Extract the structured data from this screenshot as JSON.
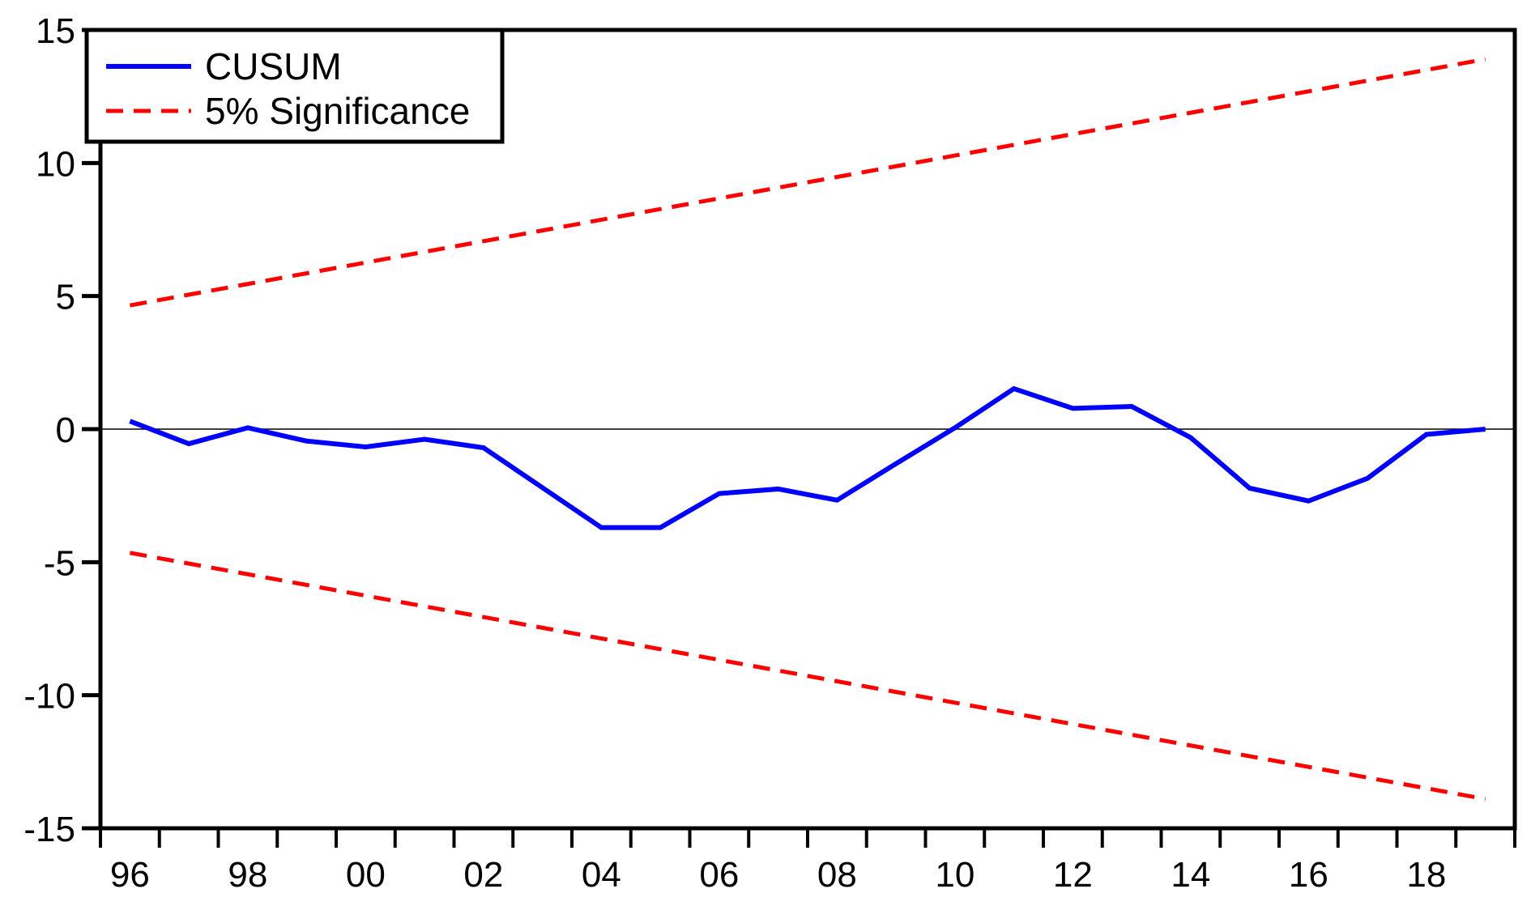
{
  "chart_data": {
    "type": "line",
    "title": "",
    "xlabel": "",
    "ylabel": "",
    "xlim": [
      1996,
      2020
    ],
    "ylim": [
      -15,
      15
    ],
    "grid": false,
    "zero_line": true,
    "frame_color": "#000000",
    "x_years": [
      1996,
      1997,
      1998,
      1999,
      2000,
      2001,
      2002,
      2003,
      2004,
      2005,
      2006,
      2007,
      2008,
      2009,
      2010,
      2011,
      2012,
      2013,
      2014,
      2015,
      2016,
      2017,
      2018,
      2019
    ],
    "series": [
      {
        "name": "CUSUM",
        "color": "#0000ff",
        "style": "solid",
        "values": [
          0.3,
          -0.55,
          0.05,
          -0.45,
          -0.67,
          -0.38,
          -0.7,
          -2.2,
          -3.7,
          -3.7,
          -2.42,
          -2.25,
          -2.67,
          -1.3,
          0.05,
          1.52,
          0.78,
          0.85,
          -0.32,
          -2.22,
          -2.7,
          -1.85,
          -0.2,
          0.0
        ]
      },
      {
        "name": "5% Significance (upper bound)",
        "color": "#ff0000",
        "style": "dashed",
        "x": [
          1996,
          2019
        ],
        "values": [
          4.65,
          13.9
        ]
      },
      {
        "name": "5% Significance (lower bound)",
        "color": "#ff0000",
        "style": "dashed",
        "x": [
          1996,
          2019
        ],
        "values": [
          -4.65,
          -13.9
        ]
      }
    ],
    "legend": {
      "position": "top-left",
      "items": [
        {
          "label": "CUSUM",
          "color": "#0000ff",
          "style": "solid"
        },
        {
          "label": "5% Significance",
          "color": "#ff0000",
          "style": "dashed"
        }
      ]
    },
    "yticks": {
      "values": [
        15,
        10,
        5,
        0,
        -5,
        -10,
        -15
      ],
      "labels": [
        "15",
        "10",
        "5",
        "0",
        "-5",
        "-10",
        "-15"
      ]
    },
    "xticks": {
      "minor_tick_years": [
        1996,
        1997,
        1998,
        1999,
        2000,
        2001,
        2002,
        2003,
        2004,
        2005,
        2006,
        2007,
        2008,
        2009,
        2010,
        2011,
        2012,
        2013,
        2014,
        2015,
        2016,
        2017,
        2018,
        2019,
        2020
      ],
      "labeled": [
        {
          "year": 1996,
          "label": "96"
        },
        {
          "year": 1998,
          "label": "98"
        },
        {
          "year": 2000,
          "label": "00"
        },
        {
          "year": 2002,
          "label": "02"
        },
        {
          "year": 2004,
          "label": "04"
        },
        {
          "year": 2006,
          "label": "06"
        },
        {
          "year": 2008,
          "label": "08"
        },
        {
          "year": 2010,
          "label": "10"
        },
        {
          "year": 2012,
          "label": "12"
        },
        {
          "year": 2014,
          "label": "14"
        },
        {
          "year": 2016,
          "label": "16"
        },
        {
          "year": 2018,
          "label": "18"
        }
      ]
    }
  }
}
